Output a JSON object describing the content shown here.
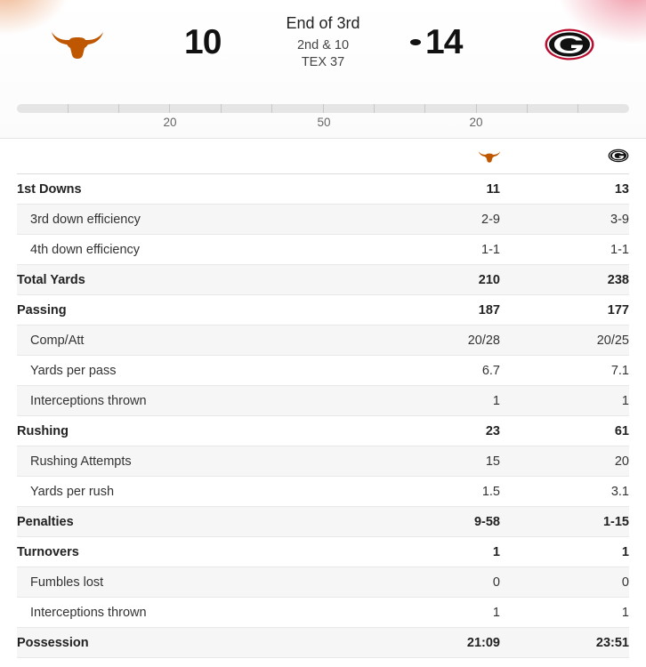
{
  "away_team": {
    "name": "Texas",
    "score": "10",
    "color": "#bf5700"
  },
  "home_team": {
    "name": "Georgia",
    "score": "14",
    "color": "#ba0c2f"
  },
  "game_status": {
    "period": "End of 3rd",
    "down_distance": "2nd & 10",
    "ball_on": "TEX 37"
  },
  "field": {
    "yard_labels": [
      "20",
      "50",
      "20"
    ]
  },
  "stats": [
    {
      "label": "1st Downs",
      "away": "11",
      "home": "13",
      "level": "main"
    },
    {
      "label": "3rd down efficiency",
      "away": "2-9",
      "home": "3-9",
      "level": "sub"
    },
    {
      "label": "4th down efficiency",
      "away": "1-1",
      "home": "1-1",
      "level": "sub"
    },
    {
      "label": "Total Yards",
      "away": "210",
      "home": "238",
      "level": "main"
    },
    {
      "label": "Passing",
      "away": "187",
      "home": "177",
      "level": "main"
    },
    {
      "label": "Comp/Att",
      "away": "20/28",
      "home": "20/25",
      "level": "sub"
    },
    {
      "label": "Yards per pass",
      "away": "6.7",
      "home": "7.1",
      "level": "sub"
    },
    {
      "label": "Interceptions thrown",
      "away": "1",
      "home": "1",
      "level": "sub"
    },
    {
      "label": "Rushing",
      "away": "23",
      "home": "61",
      "level": "main"
    },
    {
      "label": "Rushing Attempts",
      "away": "15",
      "home": "20",
      "level": "sub"
    },
    {
      "label": "Yards per rush",
      "away": "1.5",
      "home": "3.1",
      "level": "sub"
    },
    {
      "label": "Penalties",
      "away": "9-58",
      "home": "1-15",
      "level": "main"
    },
    {
      "label": "Turnovers",
      "away": "1",
      "home": "1",
      "level": "main"
    },
    {
      "label": "Fumbles lost",
      "away": "0",
      "home": "0",
      "level": "sub"
    },
    {
      "label": "Interceptions thrown",
      "away": "1",
      "home": "1",
      "level": "sub"
    },
    {
      "label": "Possession",
      "away": "21:09",
      "home": "23:51",
      "level": "main"
    }
  ]
}
